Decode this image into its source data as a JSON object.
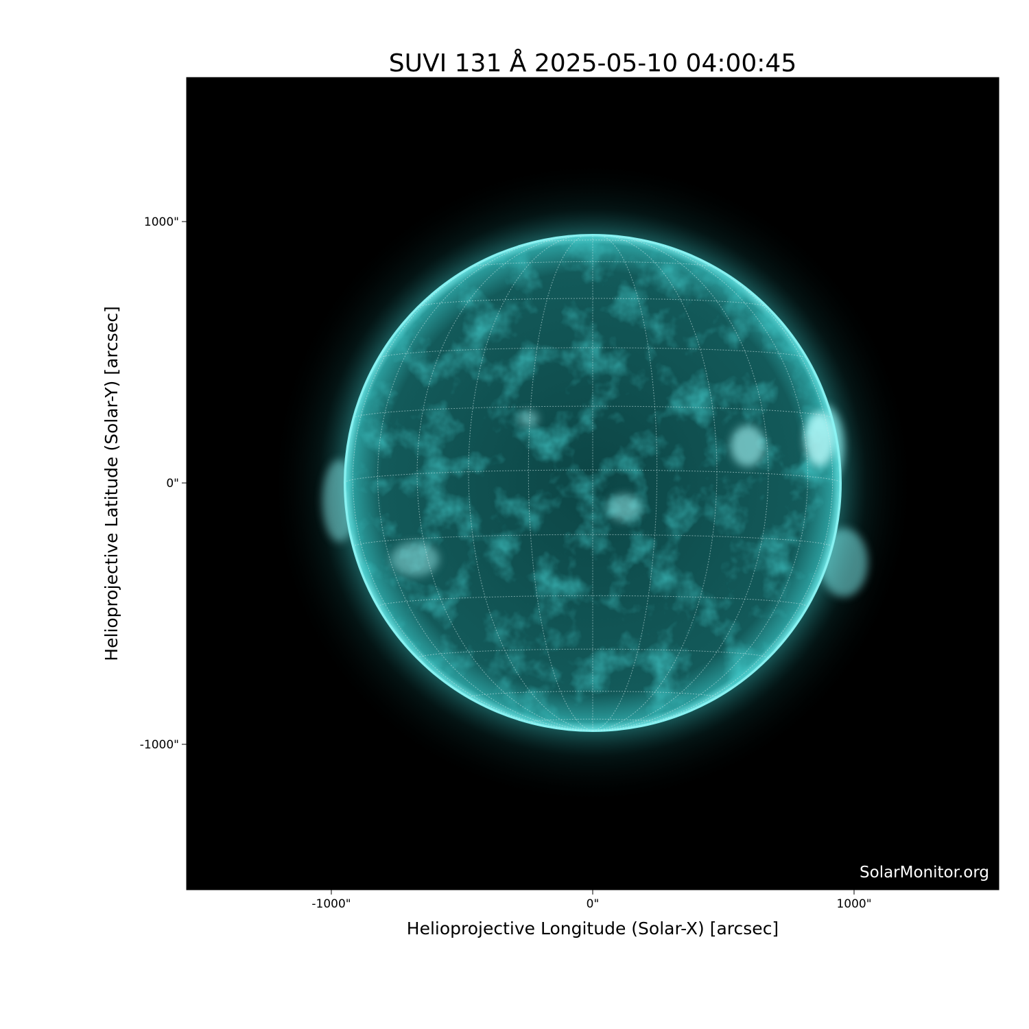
{
  "title": "SUVI 131 Å 2025-05-10 04:00:45",
  "xlabel": "Helioprojective Longitude (Solar-X) [arcsec]",
  "ylabel": "Helioprojective Latitude (Solar-Y) [arcsec]",
  "x_ticks": [
    "-1000\"",
    "0\"",
    "1000\""
  ],
  "y_ticks": [
    "1000\"",
    "0\"",
    "-1000\""
  ],
  "x_tick_values": [
    -1000,
    0,
    1000
  ],
  "y_tick_values": [
    1000,
    0,
    -1000
  ],
  "axis_range_arcsec": [
    -1550,
    1550
  ],
  "solar_radius_arcsec": 950,
  "watermark": "SolarMonitor.org",
  "colors": {
    "background": "#000000",
    "disk": "#0e4a4a",
    "limb": "#5fe8e8",
    "grid": "#cfeaea"
  },
  "grid_spacing_deg": 15
}
